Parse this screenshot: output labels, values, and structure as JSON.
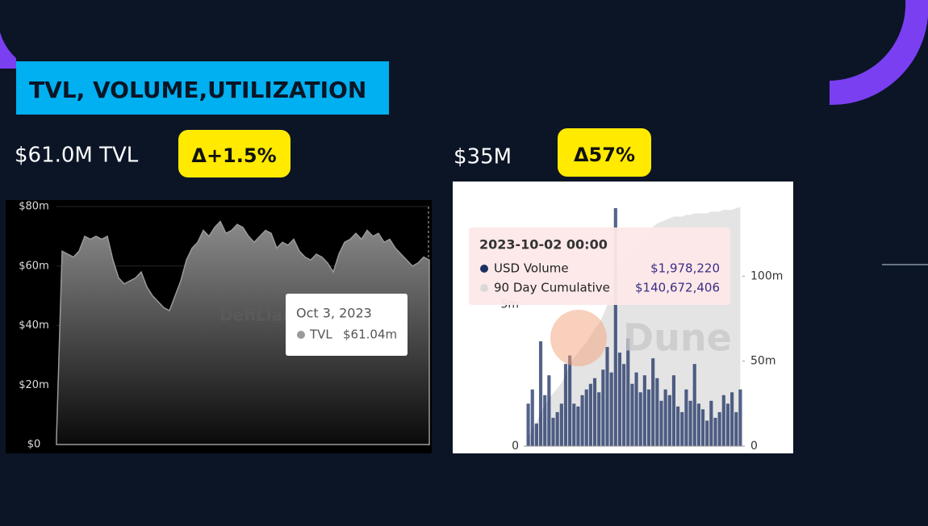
{
  "slide": {
    "title": "TVL, VOLUME,UTILIZATION",
    "tvl_label": "$61.0M TVL",
    "tvl_change": "Δ+1.5%",
    "volume_label": "$35M",
    "volume_change": "Δ57%"
  },
  "chart_data": [
    {
      "type": "area",
      "series": [
        {
          "name": "TVL",
          "color": "#9a9a9a",
          "values": [
            2,
            65,
            64,
            63,
            65,
            70,
            69,
            70,
            69,
            70,
            62,
            56,
            54,
            55,
            56,
            58,
            53,
            50,
            48,
            46,
            45,
            50,
            55,
            62,
            66,
            68,
            72,
            70,
            73,
            75,
            71,
            72,
            74,
            73,
            70,
            68,
            70,
            72,
            71,
            66,
            68,
            67,
            69,
            65,
            63,
            62,
            64,
            63,
            61,
            58,
            64,
            68,
            69,
            71,
            69,
            72,
            70,
            71,
            68,
            69,
            66,
            64,
            62,
            60,
            61,
            63,
            62
          ]
        }
      ],
      "ylim": [
        0,
        80
      ],
      "yticks": [
        {
          "value": 0,
          "label": "$0"
        },
        {
          "value": 20,
          "label": "$20m"
        },
        {
          "value": 40,
          "label": "$40m"
        },
        {
          "value": 60,
          "label": "$60m"
        },
        {
          "value": 80,
          "label": "$80m"
        }
      ],
      "grid": true,
      "watermark": "DefiLlama",
      "tooltip": {
        "title": "Oct 3, 2023",
        "values": [
          "$61.04m"
        ]
      }
    },
    {
      "type": "bar",
      "series": [
        {
          "name": "USD Volume",
          "color": "#1b2f63",
          "values": [
            1.5,
            2.0,
            0.8,
            3.7,
            1.8,
            2.5,
            1.0,
            1.2,
            1.5,
            2.9,
            3.2,
            1.5,
            1.4,
            1.8,
            2.0,
            2.2,
            2.4,
            1.9,
            2.7,
            3.5,
            2.6,
            8.4,
            3.3,
            2.9,
            3.8,
            2.2,
            2.6,
            1.9,
            2.5,
            2.0,
            3.1,
            2.4,
            1.6,
            2.0,
            1.8,
            2.5,
            1.4,
            1.2,
            2.0,
            1.6,
            2.9,
            1.5,
            1.3,
            0.9,
            1.6,
            1.0,
            1.2,
            1.8,
            1.5,
            1.9,
            1.2,
            2.0
          ]
        },
        {
          "name": "90 Day Cumulative",
          "color": "#d9d9d9",
          "axis": "y2",
          "values": [
            5,
            10,
            14,
            20,
            24,
            28,
            31,
            34,
            37,
            42,
            48,
            52,
            55,
            58,
            61,
            65,
            69,
            72,
            77,
            83,
            88,
            100,
            104,
            107,
            113,
            116,
            119,
            121,
            124,
            126,
            129,
            131,
            132,
            133,
            134,
            135,
            135,
            135,
            136,
            136,
            137,
            137,
            137,
            137,
            138,
            138,
            138,
            139,
            139,
            139,
            140,
            140.67
          ]
        }
      ],
      "ylim": [
        0,
        8.4
      ],
      "yticks": [
        0,
        {
          "value": 5,
          "label": "5m"
        }
      ],
      "y2lim": [
        0,
        140
      ],
      "y2ticks": [
        0,
        {
          "value": 50,
          "label": "50m"
        },
        {
          "value": 100,
          "label": "100m"
        }
      ],
      "watermark": "Dune",
      "tooltip": {
        "title": "2023-10-02 00:00",
        "values": [
          "$1,978,220",
          "$140,672,406"
        ]
      }
    }
  ]
}
